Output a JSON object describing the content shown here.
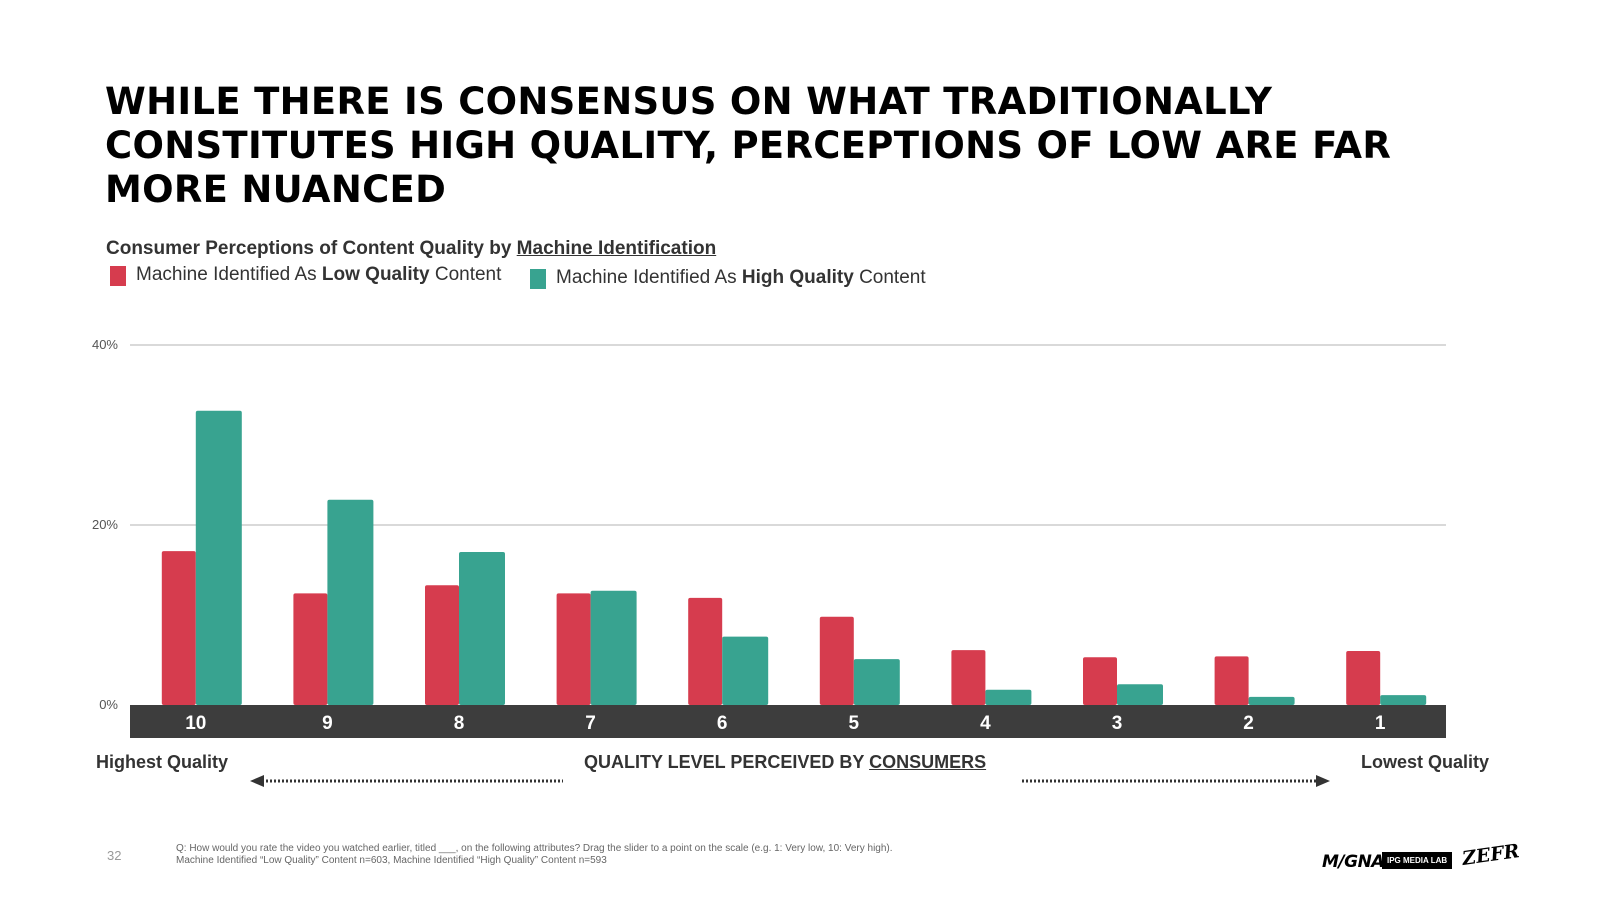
{
  "title_lines": [
    "WHILE THERE IS CONSENSUS ON WHAT TRADITIONALLY",
    "CONSTITUTES HIGH QUALITY, PERCEPTIONS OF LOW ARE FAR",
    "MORE NUANCED"
  ],
  "subtitle": {
    "prefix": "Consumer Perceptions of Content Quality by ",
    "underlined": "Machine Identification"
  },
  "legend": [
    {
      "pre": "Machine Identified As ",
      "bold": "Low Quality",
      "post": " Content",
      "color": "#d63c4e"
    },
    {
      "pre": "Machine Identified As ",
      "bold": "High Quality",
      "post": " Content",
      "color": "#38a390"
    }
  ],
  "chart_data": {
    "type": "bar",
    "categories": [
      "10",
      "9",
      "8",
      "7",
      "6",
      "5",
      "4",
      "3",
      "2",
      "1"
    ],
    "series": [
      {
        "name": "Machine Identified As Low Quality Content",
        "color": "#d63c4e",
        "values": [
          17.1,
          12.4,
          13.3,
          12.4,
          11.9,
          9.8,
          6.1,
          5.3,
          5.4,
          6.0
        ]
      },
      {
        "name": "Machine Identified As High Quality Content",
        "color": "#38a390",
        "values": [
          32.7,
          22.8,
          17.0,
          12.7,
          7.6,
          5.1,
          1.7,
          2.3,
          0.9,
          1.1
        ]
      }
    ],
    "yticks": [
      0,
      20,
      40
    ],
    "ytick_labels": [
      "0%",
      "20%",
      "40%"
    ],
    "ylim": [
      0,
      40
    ],
    "grid": true,
    "category_band_color": "#3d3d3d"
  },
  "axis": {
    "left_label": "Highest Quality",
    "center_prefix": "QUALITY LEVEL PERCEIVED BY ",
    "center_underlined": "CONSUMERS",
    "right_label": "Lowest Quality"
  },
  "footnote_lines": [
    "Q: How would you rate the video you watched earlier, titled ___, on the following attributes? Drag the slider to a point on the scale (e.g. 1: Very low, 10: Very high).",
    "Machine Identified “Low Quality” Content n=603, Machine Identified “High Quality” Content n=593"
  ],
  "page_number": "32",
  "logos": {
    "magna": "M/GNA",
    "ipg": "IPG MEDIA LAB",
    "zefr": "ZEFR"
  }
}
